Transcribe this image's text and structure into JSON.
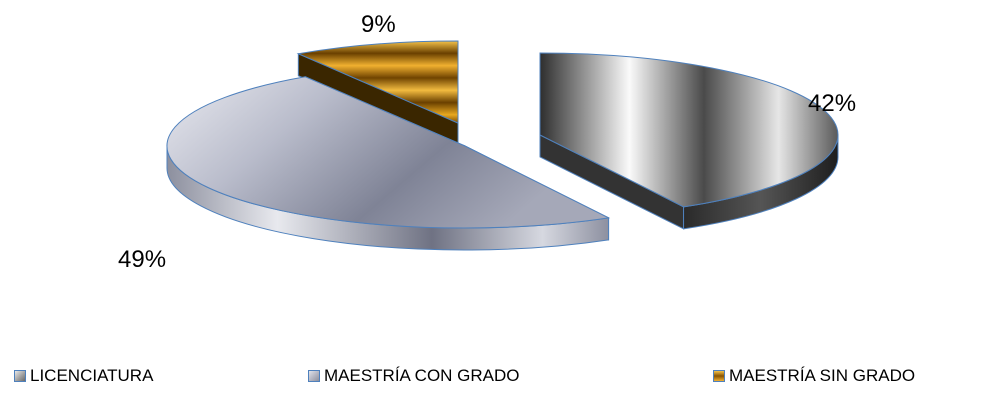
{
  "chart_data": {
    "type": "pie",
    "title": "",
    "categories": [
      "LICENCIATURA",
      "MAESTRÍA CON GRADO",
      "MAESTRÍA SIN GRADO"
    ],
    "values": [
      42,
      49,
      9
    ],
    "data_labels": [
      "42%",
      "49%",
      "9%"
    ],
    "colors": [
      "#8c8c8c",
      "#a9acbc",
      "#e0a020"
    ],
    "edge_color": "#4f81bd",
    "style": "3d-exploded",
    "legend_position": "bottom"
  }
}
